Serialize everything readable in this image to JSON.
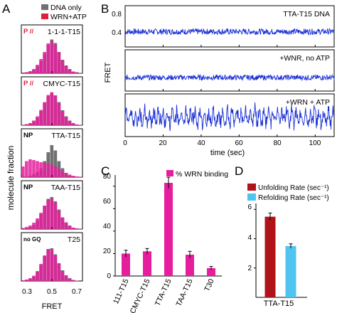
{
  "panels": {
    "A": {
      "letter": "A",
      "legend": [
        {
          "label": "DNA only",
          "color": "#707070"
        },
        {
          "label": "WRN+ATP",
          "color": "#e0203a"
        }
      ],
      "ylabel": "molecule fraction",
      "xlabel": "FRET",
      "xticks": [
        "0.3",
        "0.5",
        "0.7"
      ],
      "xlim": [
        0.3,
        0.7
      ]
    },
    "B": {
      "letter": "B",
      "ylabel": "FRET",
      "xlabel": "time (sec)",
      "xticks": [
        "0",
        "20",
        "40",
        "60",
        "80",
        "100"
      ],
      "yticks": [
        "0.8",
        "0.4"
      ]
    },
    "C": {
      "letter": "C",
      "legend": "% WRN binding",
      "color": "#e61e9e",
      "yticks": [
        "0",
        "20",
        "40",
        "60",
        "80"
      ]
    },
    "D": {
      "letter": "D",
      "legend": [
        {
          "label": "Unfolding Rate (sec⁻¹)",
          "color": "#b01419"
        },
        {
          "label": "Refolding Rate (sec⁻¹)",
          "color": "#4fc4f0"
        }
      ],
      "xlabel": "TTA-T15",
      "yticks": [
        "2",
        "4",
        "6"
      ]
    }
  },
  "chart_data": [
    {
      "type": "bar",
      "panel": "A",
      "subtitle": "histograms",
      "series_colors": {
        "dna": "#707070",
        "wrn": "#e61e9e"
      },
      "xlim": [
        0.3,
        0.7
      ],
      "bins": [
        0.3,
        0.325,
        0.35,
        0.375,
        0.4,
        0.425,
        0.45,
        0.475,
        0.5,
        0.525,
        0.55,
        0.575,
        0.6,
        0.625,
        0.65,
        0.675,
        0.7
      ],
      "subplots": [
        {
          "label": "1-1-1-T15",
          "tag": "P //",
          "tag_color": "#e0203a",
          "dna": [
            0.2,
            0.3,
            0.5,
            1.0,
            2.0,
            3.5,
            5.5,
            8.0,
            9.5,
            8.5,
            6.0,
            3.8,
            2.2,
            1.2,
            0.5,
            0.3,
            0.1
          ],
          "wrn": [
            0.1,
            0.3,
            0.6,
            1.2,
            2.4,
            4.0,
            6.0,
            8.4,
            9.2,
            8.0,
            5.8,
            3.6,
            2.0,
            1.0,
            0.4,
            0.2,
            0.1
          ]
        },
        {
          "label": "CMYC-T15",
          "tag": "P //",
          "tag_color": "#e0203a",
          "dna": [
            0.1,
            0.2,
            0.5,
            1.1,
            2.2,
            4.0,
            6.3,
            8.2,
            9.0,
            8.4,
            6.5,
            4.2,
            2.5,
            1.3,
            0.6,
            0.2,
            0.1
          ],
          "wrn": [
            0.1,
            0.3,
            0.6,
            1.3,
            2.5,
            4.3,
            6.5,
            8.5,
            9.3,
            8.2,
            6.2,
            4.0,
            2.3,
            1.1,
            0.5,
            0.2,
            0.1
          ]
        },
        {
          "label": "TTA-T15",
          "tag": "NP",
          "tag_color": "#000000",
          "dna": [
            0.1,
            0.2,
            0.4,
            0.8,
            1.5,
            2.5,
            4.5,
            7.0,
            9.0,
            7.5,
            4.5,
            2.5,
            1.2,
            0.5,
            0.2,
            0.1,
            0.0
          ],
          "wrn": [
            3.0,
            4.5,
            5.0,
            4.8,
            4.5,
            4.2,
            4.0,
            3.8,
            3.5,
            3.0,
            2.4,
            1.8,
            1.2,
            0.7,
            0.4,
            0.2,
            0.1
          ]
        },
        {
          "label": "TAA-T15",
          "tag": "NP",
          "tag_color": "#000000",
          "dna": [
            0.1,
            0.3,
            0.6,
            1.2,
            2.5,
            4.2,
            6.5,
            8.5,
            9.0,
            7.8,
            5.5,
            3.2,
            1.8,
            0.9,
            0.4,
            0.2,
            0.1
          ],
          "wrn": [
            0.3,
            0.6,
            1.0,
            1.8,
            3.0,
            4.6,
            6.6,
            8.2,
            8.6,
            7.4,
            5.2,
            3.3,
            1.9,
            1.0,
            0.4,
            0.2,
            0.1
          ]
        },
        {
          "label": "T25",
          "tag": "no GQ",
          "tag_color": "#000000",
          "dna": [
            0.1,
            0.3,
            0.6,
            1.2,
            2.6,
            4.5,
            7.0,
            9.0,
            9.2,
            7.5,
            5.0,
            3.0,
            1.6,
            0.8,
            0.3,
            0.1,
            0.0
          ],
          "wrn": [
            0.2,
            0.4,
            0.8,
            1.5,
            2.8,
            4.8,
            7.2,
            8.8,
            8.8,
            7.2,
            4.8,
            2.8,
            1.5,
            0.7,
            0.3,
            0.1,
            0.0
          ]
        }
      ]
    },
    {
      "type": "line",
      "panel": "B",
      "xlabel": "time (sec)",
      "ylabel": "FRET",
      "xlim": [
        0,
        110
      ],
      "ylim": [
        0.2,
        0.9
      ],
      "color": "#1a2fd6",
      "traces": [
        {
          "label": "TTA-T15 DNA",
          "mean": 0.46,
          "noise": 0.05,
          "dips": 0.0
        },
        {
          "label": "+WNR, no ATP",
          "mean": 0.43,
          "noise": 0.045,
          "dips": 0.0
        },
        {
          "label": "+WRN + ATP",
          "mean": 0.52,
          "noise": 0.09,
          "dips": 0.35
        }
      ]
    },
    {
      "type": "bar",
      "panel": "C",
      "categories": [
        "111-T15",
        "CMYC-T15",
        "TTA-T15",
        "TAA-T15",
        "T30"
      ],
      "values": [
        20,
        22,
        83,
        19,
        7
      ],
      "errors": [
        3,
        2.5,
        5,
        3,
        1.5
      ],
      "ylim": [
        0,
        90
      ],
      "legend": "% WRN binding"
    },
    {
      "type": "bar",
      "panel": "D",
      "categories": [
        "TTA-T15"
      ],
      "series": [
        {
          "name": "Unfolding Rate (sec⁻¹)",
          "values": [
            5.5
          ],
          "errors": [
            0.25
          ]
        },
        {
          "name": "Refolding Rate (sec⁻¹)",
          "values": [
            3.5
          ],
          "errors": [
            0.15
          ]
        }
      ],
      "ylim": [
        0,
        6.5
      ]
    }
  ]
}
